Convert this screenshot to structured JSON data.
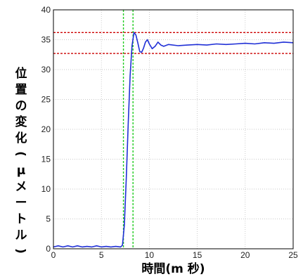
{
  "chart_data": {
    "type": "line",
    "xlabel": "時間(m 秒)",
    "ylabel": "位置の変化(μメートル)",
    "xlim": [
      0,
      25
    ],
    "ylim": [
      0,
      40
    ],
    "xticks": [
      "0",
      "5",
      "10",
      "15",
      "20",
      "25"
    ],
    "yticks": [
      "0",
      "5",
      "10",
      "15",
      "20",
      "25",
      "30",
      "35",
      "40"
    ],
    "grid": true,
    "series": [
      {
        "color": "#1f2fd6",
        "x": [
          0,
          0.5,
          1,
          1.5,
          2,
          2.5,
          3,
          3.5,
          4,
          4.5,
          5,
          5.5,
          6,
          6.5,
          7,
          7.2,
          7.4,
          7.6,
          7.8,
          8.0,
          8.2,
          8.4,
          8.6,
          8.8,
          9.0,
          9.2,
          9.4,
          9.6,
          9.8,
          10.0,
          10.3,
          10.6,
          10.9,
          11.2,
          11.5,
          12,
          13,
          14,
          15,
          16,
          17,
          18,
          19,
          20,
          21,
          22,
          23,
          24,
          25
        ],
        "y": [
          0.3,
          0.5,
          0.3,
          0.5,
          0.3,
          0.5,
          0.3,
          0.4,
          0.3,
          0.5,
          0.3,
          0.4,
          0.3,
          0.4,
          0.3,
          0.6,
          4,
          12,
          21,
          29,
          34,
          36.2,
          35.8,
          34.5,
          33.0,
          32.9,
          33.6,
          34.6,
          35.0,
          34.3,
          33.5,
          33.9,
          34.6,
          34.1,
          33.9,
          34.2,
          34.0,
          34.1,
          34.2,
          34.1,
          34.3,
          34.2,
          34.3,
          34.4,
          34.3,
          34.5,
          34.4,
          34.6,
          34.5
        ]
      }
    ],
    "reference_lines": [
      {
        "orientation": "horizontal",
        "value": 36.2,
        "color": "#cc0000",
        "style": "dashed"
      },
      {
        "orientation": "horizontal",
        "value": 32.7,
        "color": "#cc0000",
        "style": "dashed"
      },
      {
        "orientation": "vertical",
        "value": 7.3,
        "color": "#22cc22",
        "style": "dashed"
      },
      {
        "orientation": "vertical",
        "value": 8.3,
        "color": "#22cc22",
        "style": "dashed"
      }
    ]
  }
}
